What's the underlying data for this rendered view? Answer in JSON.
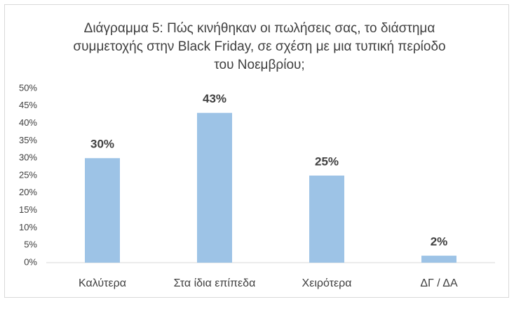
{
  "chart_data": {
    "type": "bar",
    "title": "Διάγραμμα 5: Πώς κινήθηκαν οι πωλήσεις σας, το διάστημα συμμετοχής στην Black Friday, σε σχέση με μια τυπική περίοδο του Νοεμβρίου;",
    "categories": [
      "Καλύτερα",
      "Στα ίδια επίπεδα",
      "Χειρότερα",
      "ΔΓ / ΔΑ"
    ],
    "values": [
      30,
      43,
      25,
      2
    ],
    "value_labels": [
      "30%",
      "43%",
      "25%",
      "2%"
    ],
    "color": "#9dc3e6",
    "ylim": [
      0,
      50
    ],
    "yticks": [
      {
        "value": 0,
        "label": "0%"
      },
      {
        "value": 5,
        "label": "5%"
      },
      {
        "value": 10,
        "label": "10%"
      },
      {
        "value": 15,
        "label": "15%"
      },
      {
        "value": 20,
        "label": "20%"
      },
      {
        "value": 25,
        "label": "25%"
      },
      {
        "value": 30,
        "label": "30%"
      },
      {
        "value": 35,
        "label": "35%"
      },
      {
        "value": 40,
        "label": "40%"
      },
      {
        "value": 45,
        "label": "45%"
      },
      {
        "value": 50,
        "label": "50%"
      }
    ],
    "grid": false
  }
}
